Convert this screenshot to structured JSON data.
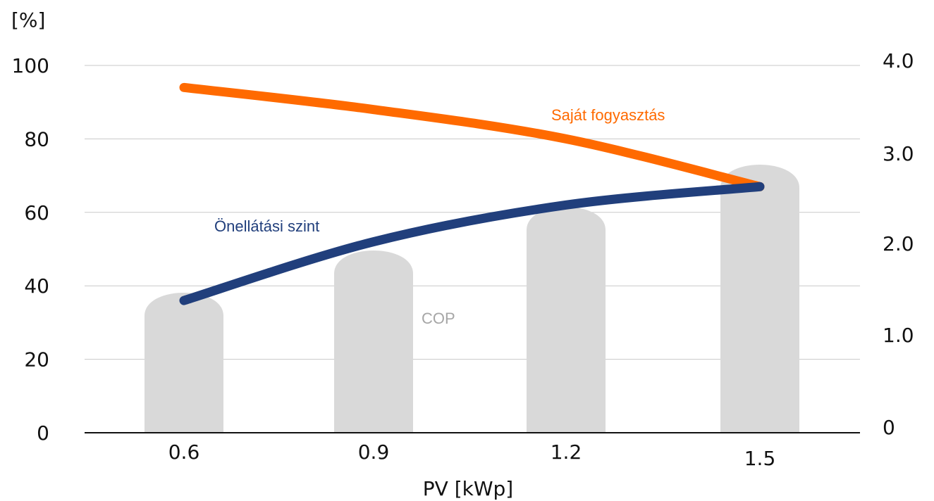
{
  "chart_data": {
    "type": "line",
    "x": [
      0.6,
      0.9,
      1.2,
      1.5
    ],
    "categories": [
      "0.6",
      "0.9",
      "1.2",
      "1.5"
    ],
    "xlabel": "PV [kWp]",
    "ylabel_left": "[%]",
    "ylim_left": [
      0,
      100
    ],
    "yticks_left": [
      "0",
      "20",
      "40",
      "60",
      "80",
      "100"
    ],
    "ylim_right": [
      0,
      4.0
    ],
    "yticks_right": [
      "0",
      "1.0",
      "2.0",
      "3.0",
      "4.0"
    ],
    "grid": true,
    "series": [
      {
        "name": "COP",
        "type": "bar",
        "axis": "right",
        "values": [
          1.6,
          2.05,
          2.5,
          3.0
        ],
        "color": "#d9d9d9"
      },
      {
        "name": "Saját fogyasztás",
        "type": "line",
        "axis": "left",
        "values": [
          94,
          88,
          80,
          67
        ],
        "color": "#ff6a00"
      },
      {
        "name": "Önellátási szint",
        "type": "line",
        "axis": "left",
        "values": [
          36,
          52,
          62,
          67
        ],
        "color": "#213f7c"
      }
    ]
  }
}
